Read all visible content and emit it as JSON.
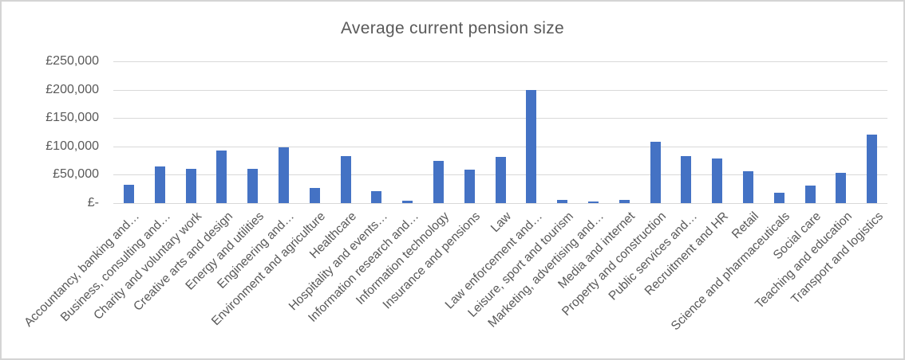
{
  "chart_data": {
    "type": "bar",
    "title": "Average current pension size",
    "categories": [
      "Accountancy, banking and…",
      "Business, consulting and…",
      "Charity and voluntary work",
      "Creative arts and design",
      "Energy and utilities",
      "Engineering and…",
      "Environment and agriculture",
      "Healthcare",
      "Hospitality and events…",
      "Information research and…",
      "Information technology",
      "Insurance and pensions",
      "Law",
      "Law enforcement and…",
      "Leisure, sport and tourism",
      "Marketing, advertising and…",
      "Media and internet",
      "Property and construction",
      "Public services and…",
      "Recruitment and HR",
      "Retail",
      "Science and pharmaceuticals",
      "Social care",
      "Teaching and education",
      "Transport and logistics"
    ],
    "values": [
      32000,
      64000,
      60000,
      92000,
      61000,
      98000,
      26000,
      83000,
      21000,
      4000,
      74000,
      59000,
      81000,
      200000,
      6000,
      3000,
      6000,
      108000,
      83000,
      78000,
      56000,
      18000,
      31000,
      54000,
      121000
    ],
    "xlabel": "",
    "ylabel": "",
    "ylim": [
      0,
      250000
    ],
    "ytick_interval": 50000,
    "ytick_labels": [
      "£-",
      "£50,000",
      "£100,000",
      "£150,000",
      "£200,000",
      "£250,000"
    ],
    "grid": true,
    "legend": false,
    "colors": {
      "bar": "#4472C4",
      "gridline": "#D9D9D9",
      "text": "#595959",
      "frame_border": "#D4D4D4",
      "background": "#FFFFFF"
    }
  }
}
